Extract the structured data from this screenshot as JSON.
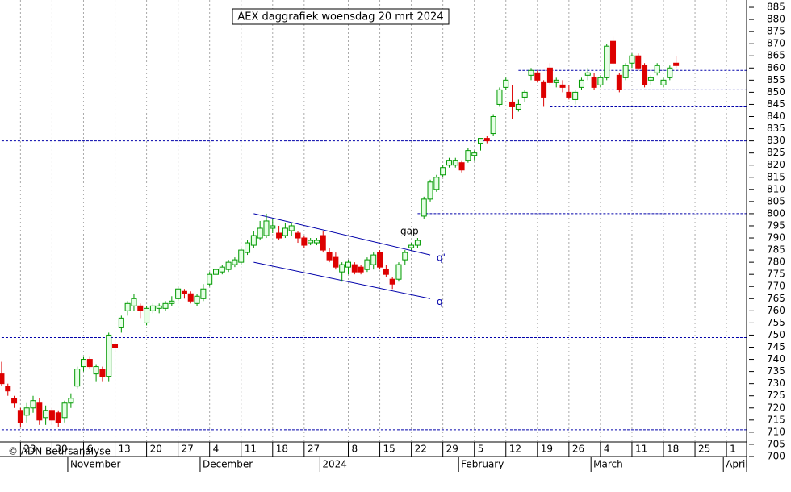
{
  "chart_data": {
    "type": "candlestick",
    "title": "AEX daggrafiek woensdag 20 mrt 2024",
    "source": "© ADN Beursanalyse",
    "categories": [
      null,
      null,
      null,
      "23",
      null,
      null,
      null,
      null,
      "30",
      null,
      null,
      null,
      null,
      "6",
      null,
      null,
      null,
      null,
      "13",
      null,
      null,
      null,
      null,
      "20",
      null,
      null,
      null,
      null,
      "27",
      null,
      null,
      null,
      null,
      "4",
      null,
      null,
      null,
      null,
      "11",
      null,
      null,
      null,
      null,
      "18",
      null,
      null,
      null,
      null,
      "27",
      null,
      null,
      null,
      null,
      null,
      null,
      "8",
      null,
      null,
      null,
      null,
      "15",
      null,
      null,
      null,
      null,
      "22",
      null,
      null,
      null,
      null,
      "29",
      null,
      null,
      null,
      null,
      "5",
      null,
      null,
      null,
      null,
      "12",
      null,
      null,
      null,
      null,
      "19",
      null,
      null,
      null,
      null,
      "26",
      null,
      null,
      null,
      null,
      "4",
      null,
      null,
      null,
      null,
      "11",
      null,
      null,
      null,
      null,
      "18",
      null,
      null,
      null,
      null,
      "25",
      null,
      null,
      null,
      null,
      "1",
      null,
      null
    ],
    "months": [
      "November",
      "December",
      "2024",
      "February",
      "March",
      "April"
    ],
    "open": [
      734,
      729,
      724,
      719,
      717,
      720,
      722,
      716,
      719,
      718,
      716,
      722,
      729,
      737,
      740,
      734,
      736,
      733,
      746,
      753,
      760,
      762,
      762,
      755,
      760,
      761,
      761,
      763,
      765,
      768,
      767,
      763,
      765,
      771,
      775,
      776,
      777,
      779,
      780,
      784,
      787,
      790,
      791,
      794,
      792,
      791,
      793,
      792,
      790,
      788,
      788,
      791,
      784,
      782,
      776,
      778,
      779,
      778,
      777,
      779,
      784,
      777,
      773,
      773,
      781,
      786,
      787,
      799,
      806,
      810,
      816,
      820,
      820,
      821,
      822,
      824,
      829,
      831,
      833,
      845,
      852,
      846,
      843,
      848,
      857,
      858,
      854,
      860,
      854,
      853,
      850,
      847,
      852,
      857,
      856,
      853,
      856,
      871,
      857,
      856,
      862,
      865,
      861,
      855,
      858,
      853,
      856,
      862,
      null,
      null,
      null,
      null,
      null,
      null,
      null,
      null,
      null,
      null
    ],
    "high": [
      739,
      730,
      725,
      720,
      722,
      725,
      724,
      721,
      720,
      719,
      723,
      726,
      737,
      741,
      741,
      738,
      737,
      751,
      749,
      758,
      764,
      767,
      763,
      762,
      763,
      763,
      764,
      766,
      770,
      769,
      768,
      767,
      771,
      776,
      778,
      779,
      781,
      782,
      786,
      789,
      793,
      797,
      800,
      798,
      795,
      796,
      796,
      793,
      791,
      790,
      790,
      793,
      786,
      784,
      780,
      781,
      780,
      779,
      782,
      784,
      785,
      779,
      774,
      780,
      785,
      788,
      790,
      807,
      814,
      816,
      820,
      823,
      823,
      822,
      827,
      826,
      831,
      832,
      841,
      852,
      856,
      853,
      847,
      851,
      860,
      859,
      855,
      862,
      856,
      855,
      853,
      851,
      856,
      860,
      858,
      857,
      870,
      873,
      858,
      862,
      866,
      866,
      862,
      857,
      862,
      856,
      861,
      865,
      null,
      null,
      null,
      null,
      null,
      null,
      null,
      null,
      null,
      null
    ],
    "low": [
      729,
      725,
      720,
      712,
      714,
      718,
      713,
      713,
      713,
      712,
      714,
      720,
      728,
      735,
      736,
      731,
      731,
      731,
      743,
      751,
      758,
      760,
      757,
      754,
      759,
      759,
      760,
      762,
      764,
      765,
      763,
      762,
      764,
      770,
      774,
      775,
      776,
      778,
      779,
      783,
      786,
      789,
      790,
      792,
      789,
      790,
      791,
      788,
      786,
      787,
      787,
      784,
      780,
      777,
      772,
      775,
      775,
      775,
      776,
      777,
      777,
      774,
      769,
      772,
      779,
      785,
      786,
      798,
      805,
      809,
      815,
      819,
      819,
      817,
      821,
      822,
      826,
      829,
      832,
      844,
      851,
      839,
      842,
      846,
      855,
      854,
      844,
      853,
      852,
      850,
      847,
      845,
      851,
      855,
      851,
      852,
      855,
      861,
      850,
      855,
      860,
      859,
      852,
      853,
      857,
      852,
      855,
      860,
      null,
      null,
      null,
      null,
      null,
      null,
      null,
      null,
      null,
      null
    ],
    "close": [
      730,
      727,
      722,
      714,
      720,
      723,
      715,
      719,
      715,
      714,
      722,
      724,
      736,
      740,
      737,
      737,
      733,
      750,
      745,
      757,
      763,
      765,
      760,
      761,
      762,
      762,
      763,
      764,
      769,
      767,
      764,
      766,
      769,
      775,
      777,
      778,
      780,
      781,
      785,
      788,
      791,
      794,
      797,
      795,
      790,
      794,
      795,
      790,
      787,
      789,
      789,
      785,
      781,
      778,
      779,
      780,
      776,
      776,
      781,
      783,
      778,
      775,
      771,
      779,
      784,
      787,
      789,
      806,
      813,
      815,
      819,
      822,
      822,
      818,
      826,
      825,
      831,
      830,
      840,
      851,
      855,
      844,
      845,
      850,
      859,
      855,
      848,
      854,
      855,
      852,
      848,
      850,
      855,
      858,
      852,
      856,
      869,
      862,
      851,
      861,
      865,
      860,
      853,
      856,
      861,
      855,
      860,
      861,
      null,
      null,
      null,
      null,
      null,
      null,
      null,
      null,
      null,
      null
    ],
    "up_color": "#009900",
    "down_color": "#dd0000",
    "ylim": [
      697,
      888
    ],
    "yticks": [
      700,
      705,
      710,
      715,
      720,
      725,
      730,
      735,
      740,
      745,
      750,
      755,
      760,
      765,
      770,
      775,
      780,
      785,
      790,
      795,
      800,
      805,
      810,
      815,
      820,
      825,
      830,
      835,
      840,
      845,
      850,
      855,
      860,
      865,
      870,
      875,
      880,
      885
    ],
    "levels": [
      859,
      851,
      844,
      830,
      800,
      749,
      711
    ],
    "level_color": "#0000aa",
    "trendlines": [
      {
        "label": "q'",
        "values": [
          800,
          783
        ]
      },
      {
        "label": "q",
        "values": [
          780,
          765
        ]
      }
    ],
    "annotations": [
      "gap"
    ]
  }
}
